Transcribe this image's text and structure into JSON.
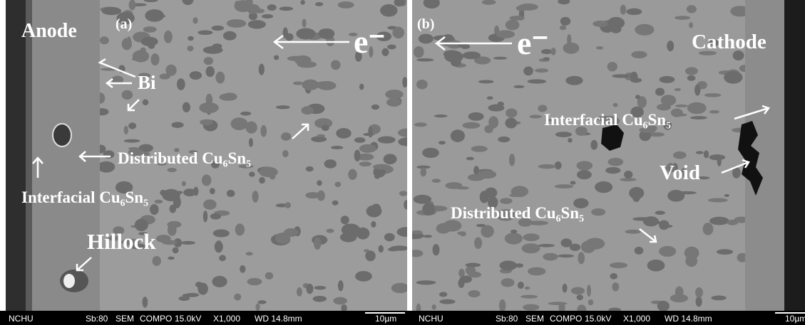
{
  "panels": [
    {
      "label": "(a)",
      "electrode": "Anode",
      "electron": "e⁻",
      "bi": "Bi",
      "distributed": "Distributed Cu₆Sn₅",
      "interfacial": "Interfacial Cu₆Sn₅",
      "defect": "Hillock",
      "footer": [
        "NCHU",
        "Sb:80",
        "SEM",
        "COMPO",
        "15.0kV",
        "X1,000",
        "WD 14.8mm",
        "10µm"
      ]
    },
    {
      "label": "(b)",
      "electrode": "Cathode",
      "electron": "e⁻",
      "distributed": "Distributed Cu₆Sn₅",
      "interfacial": "Interfacial Cu₆Sn₅",
      "defect": "Void",
      "footer": [
        "NCHU",
        "Sb:80",
        "SEM",
        "COMPO",
        "15.0kV",
        "X1,000",
        "WD 14.8mm",
        "10µm"
      ]
    }
  ]
}
